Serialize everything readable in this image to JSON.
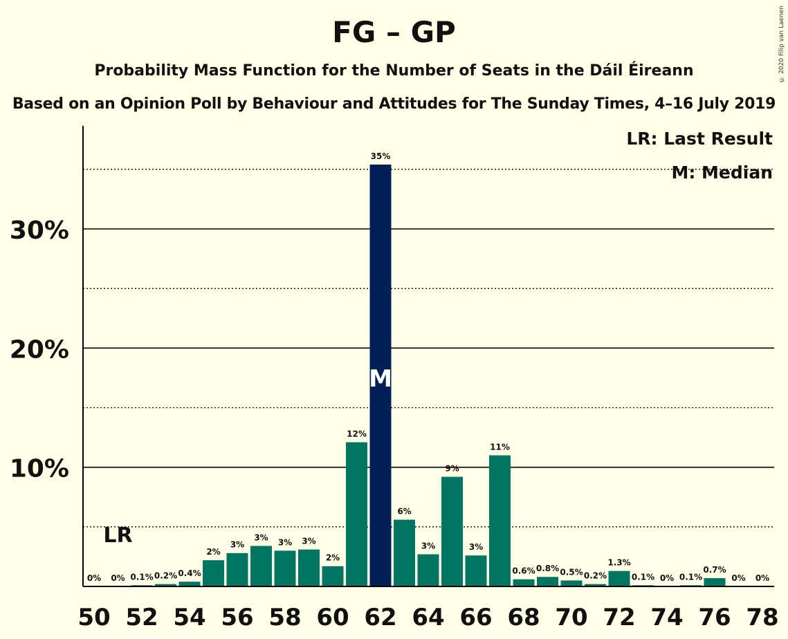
{
  "chart_data": {
    "type": "bar",
    "title": "FG – GP",
    "subtitle": "Probability Mass Function for the Number of Seats in the Dáil Éireann",
    "subtitle2": "Based on an Opinion Poll by Behaviour and Attitudes for The Sunday Times, 4–16 July 2019",
    "copyright": "© 2020 Filip van Laenen",
    "legend": {
      "last_result": "LR: Last Result",
      "median": "M: Median",
      "placement": "top-right"
    },
    "markers": {
      "last_result_label": "LR",
      "last_result_seat": 51,
      "median_label": "M",
      "median_seat": 62
    },
    "x": [
      50,
      51,
      52,
      53,
      54,
      55,
      56,
      57,
      58,
      59,
      60,
      61,
      62,
      63,
      64,
      65,
      66,
      67,
      68,
      69,
      70,
      71,
      72,
      73,
      74,
      75,
      76,
      77,
      78
    ],
    "values": [
      0,
      0,
      0.1,
      0.2,
      0.4,
      2.2,
      2.8,
      3.4,
      3.0,
      3.1,
      1.7,
      12.1,
      35.4,
      5.6,
      2.7,
      9.2,
      2.6,
      11.0,
      0.6,
      0.8,
      0.5,
      0.2,
      1.3,
      0.1,
      0,
      0.1,
      0.7,
      0,
      0
    ],
    "labels": [
      "0%",
      "0%",
      "0.1%",
      "0.2%",
      "0.4%",
      "2%",
      "3%",
      "3%",
      "3%",
      "3%",
      "2%",
      "12%",
      "35%",
      "6%",
      "3%",
      "9%",
      "3%",
      "11%",
      "0.6%",
      "0.8%",
      "0.5%",
      "0.2%",
      "1.3%",
      "0.1%",
      "0%",
      "0.1%",
      "0.7%",
      "0%",
      "0%"
    ],
    "x_tick_labels": [
      "50",
      "52",
      "54",
      "56",
      "58",
      "60",
      "62",
      "64",
      "66",
      "68",
      "70",
      "72",
      "74",
      "76",
      "78"
    ],
    "y_ticks": [
      10,
      20,
      30
    ],
    "y_tick_labels": [
      "10%",
      "20%",
      "30%"
    ],
    "y_minor_ticks": [
      5,
      15,
      25,
      35
    ],
    "ylim": [
      0,
      38.6
    ],
    "colors": {
      "bar": "#007561",
      "median_bar": "#002055",
      "background": "#FFFEE6"
    }
  }
}
